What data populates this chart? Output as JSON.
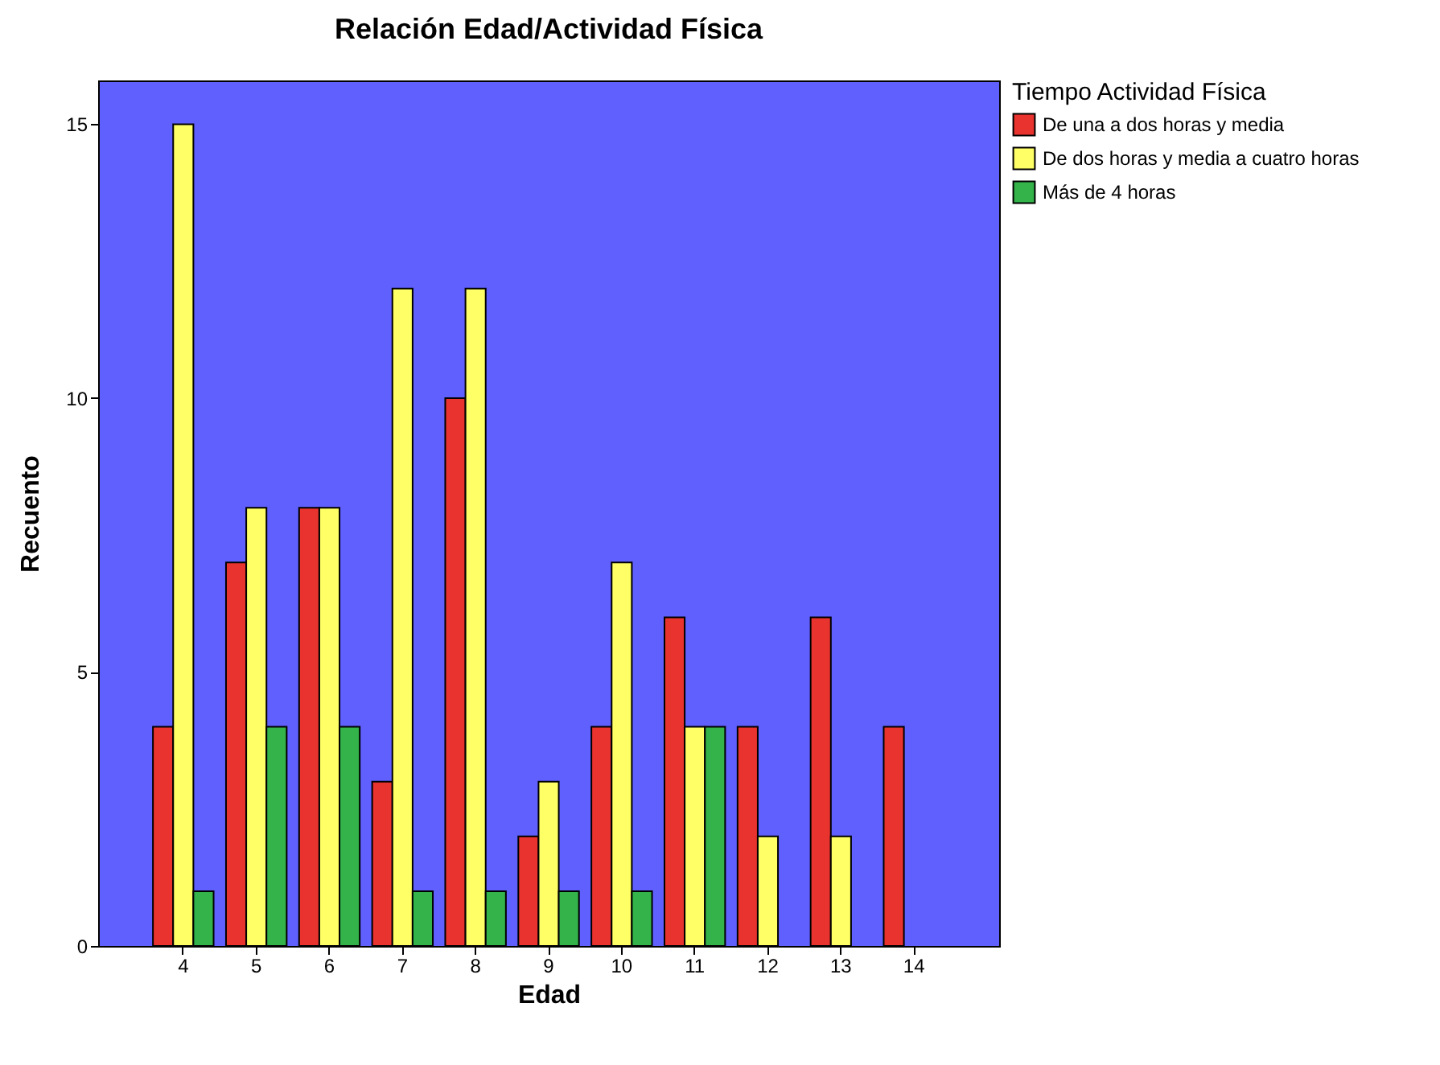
{
  "chart_data": {
    "type": "bar",
    "title": "Relación Edad/Actividad Física",
    "xlabel": "Edad",
    "ylabel": "Recuento",
    "legend_title": "Tiempo Actividad Física",
    "categories": [
      "4",
      "5",
      "6",
      "7",
      "8",
      "9",
      "10",
      "11",
      "12",
      "13",
      "14"
    ],
    "series": [
      {
        "name": "De una a dos horas y media",
        "color": "#e8332f",
        "values": [
          4,
          7,
          8,
          3,
          10,
          2,
          4,
          6,
          4,
          6,
          4
        ]
      },
      {
        "name": "De dos horas y media a cuatro horas",
        "color": "#ffff66",
        "values": [
          15,
          8,
          8,
          12,
          12,
          3,
          7,
          4,
          2,
          2,
          null
        ]
      },
      {
        "name": "Más de 4 horas",
        "color": "#33b34a",
        "values": [
          1,
          4,
          4,
          1,
          1,
          1,
          1,
          4,
          null,
          null,
          null
        ]
      }
    ],
    "ylim": [
      0,
      15.8
    ],
    "yticks": [
      0,
      5,
      10,
      15
    ],
    "grid": false,
    "legend": "top right"
  }
}
